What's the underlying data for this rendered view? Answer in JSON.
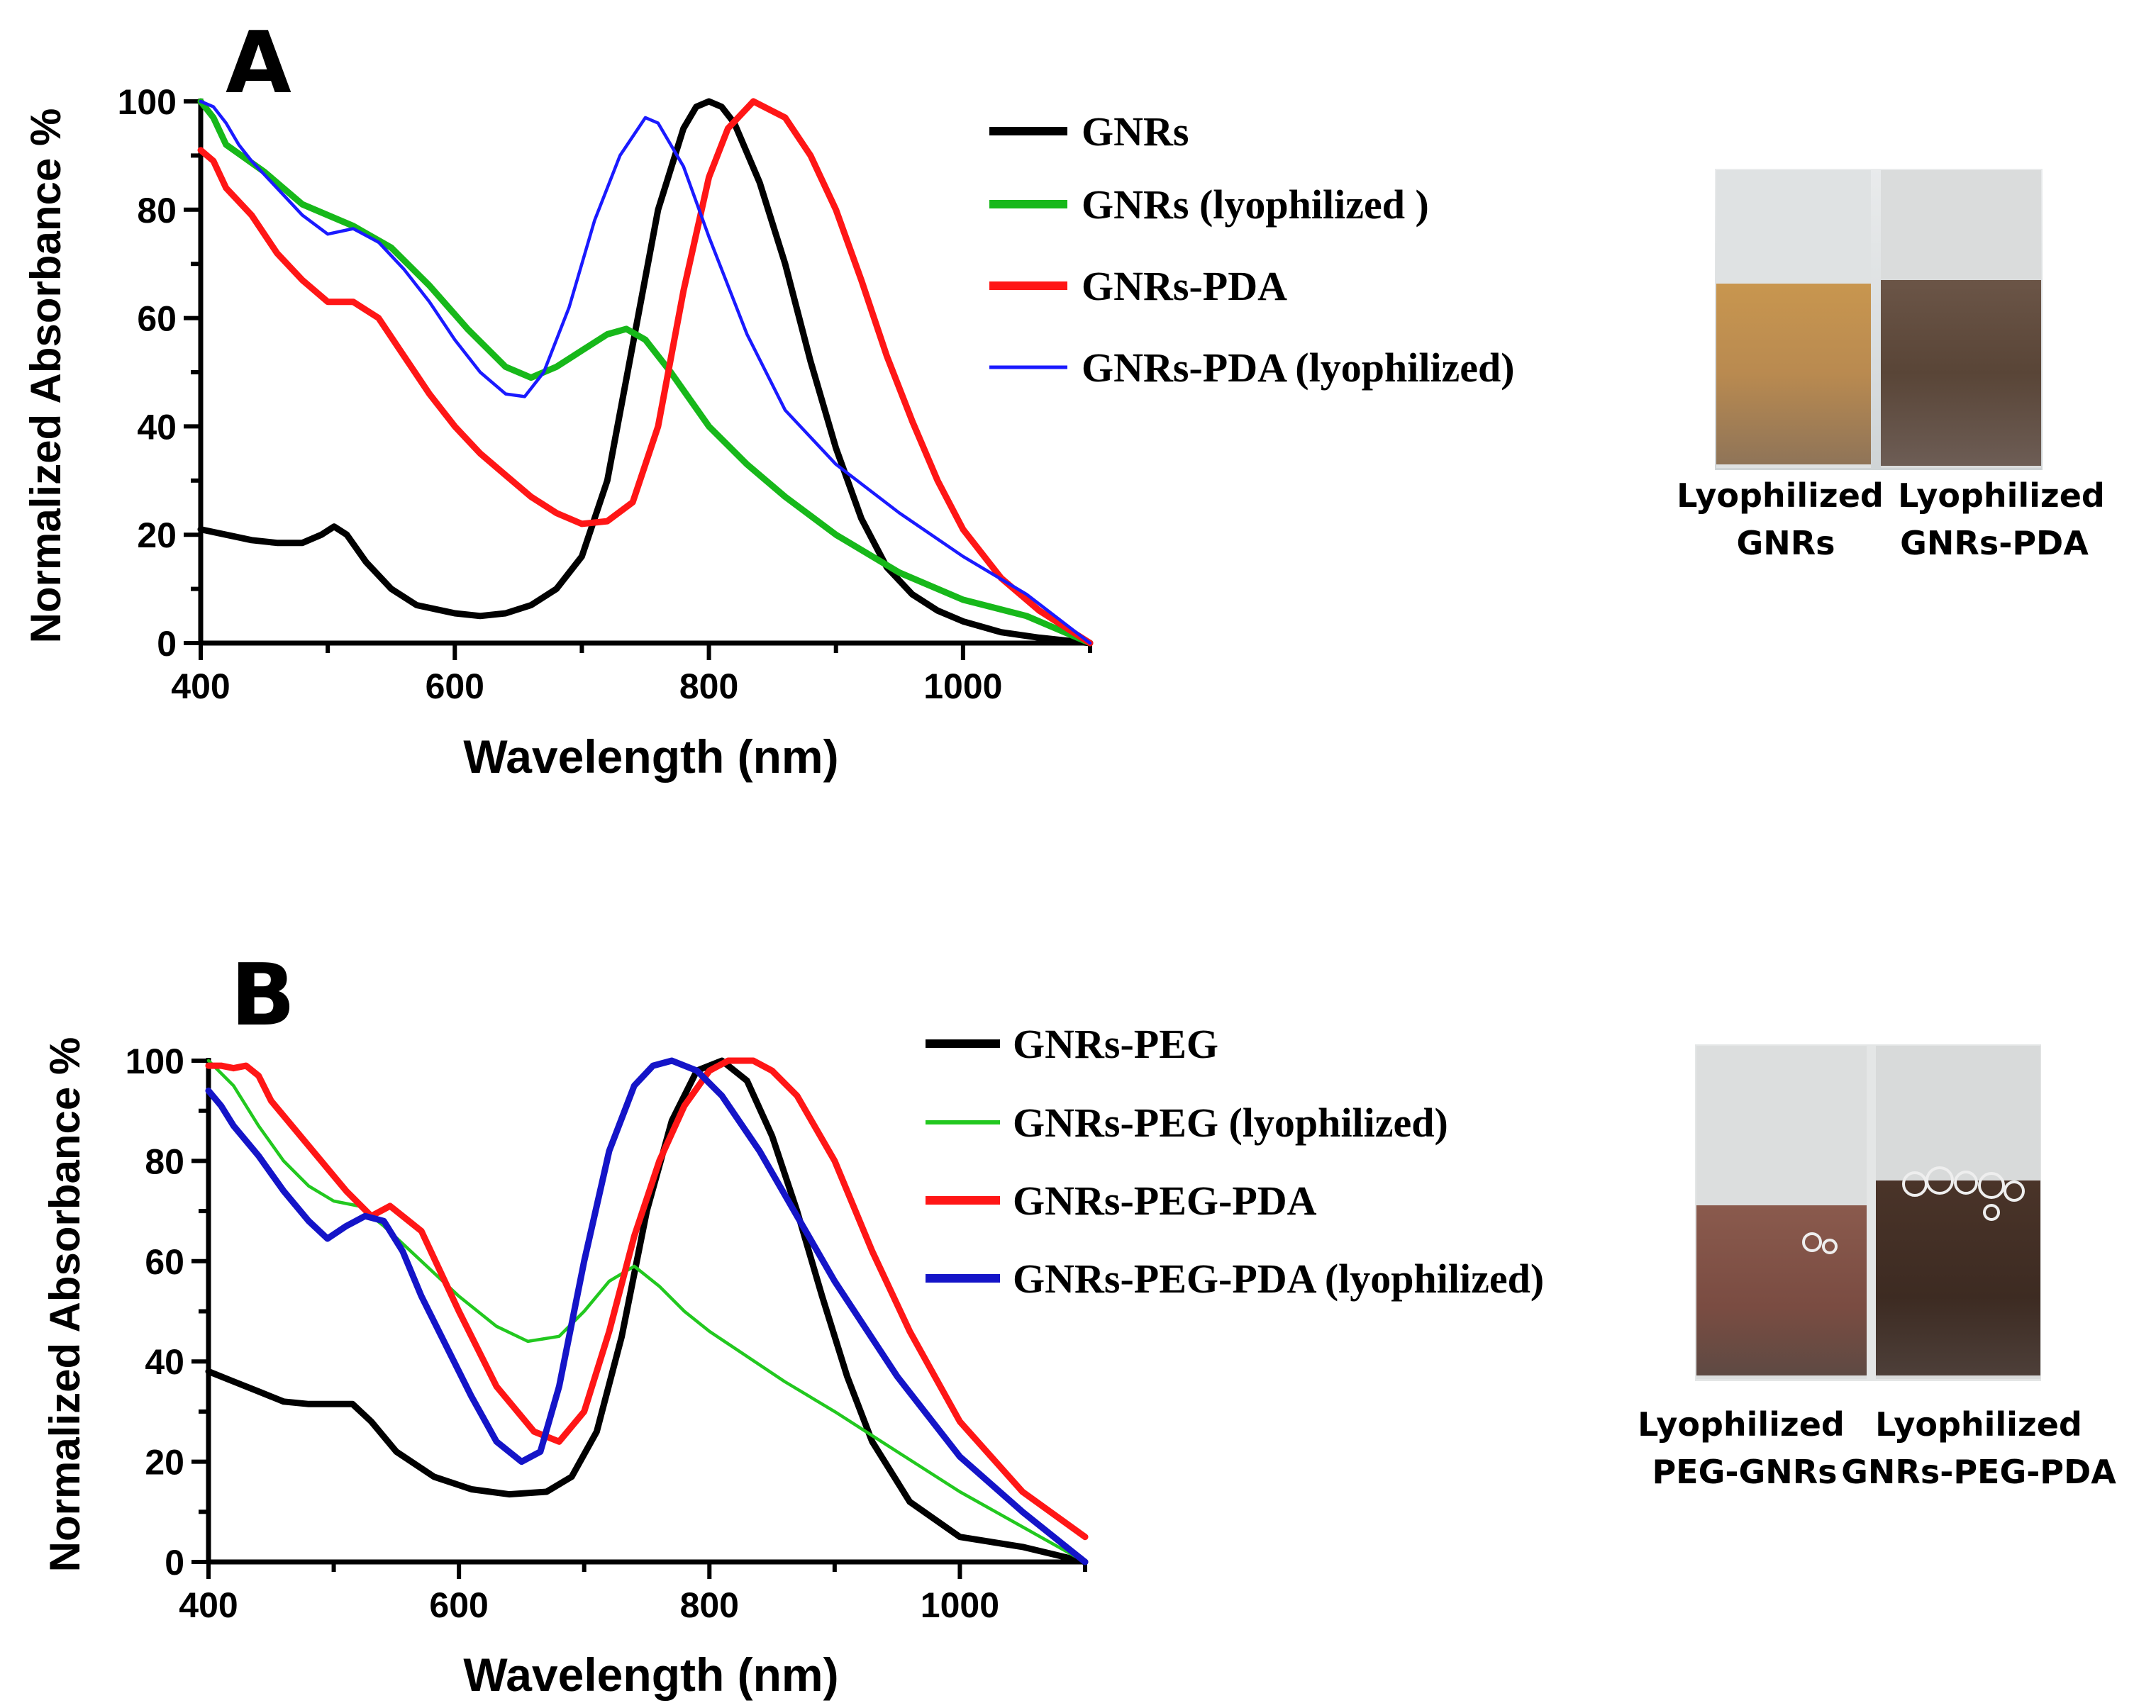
{
  "colors": {
    "black": "#000000",
    "green": "#17b81a",
    "red": "#ff1616",
    "blue_a": "#1a1aff",
    "blue_b": "#1414c8",
    "light_green": "#22c81f"
  },
  "chart_data": [
    {
      "type": "line",
      "panel_label": "A",
      "title": "",
      "xlabel": "Wavelength (nm)",
      "ylabel": "Normalized Absorbance %",
      "xlim": [
        400,
        1100
      ],
      "ylim": [
        0,
        100
      ],
      "x_ticks": [
        "400",
        "600",
        "800",
        "1000"
      ],
      "y_ticks": [
        "0",
        "20",
        "40",
        "60",
        "80",
        "100"
      ],
      "legend_position": "top-right",
      "grid": false,
      "series": [
        {
          "name": "GNRs",
          "color": "#000000",
          "width": "thick",
          "x": [
            400,
            420,
            440,
            460,
            480,
            495,
            505,
            515,
            530,
            550,
            570,
            600,
            620,
            640,
            660,
            680,
            700,
            720,
            740,
            760,
            780,
            790,
            800,
            810,
            820,
            840,
            860,
            880,
            900,
            920,
            940,
            960,
            980,
            1000,
            1030,
            1060,
            1100
          ],
          "values": [
            21,
            20,
            19,
            18.5,
            18.5,
            20,
            21.5,
            20,
            15,
            10,
            7,
            5.5,
            5,
            5.5,
            7,
            10,
            16,
            30,
            55,
            80,
            95,
            99,
            100,
            99,
            96,
            85,
            70,
            52,
            36,
            23,
            14,
            9,
            6,
            4,
            2,
            1,
            0
          ]
        },
        {
          "name": "GNRs (lyophilized )",
          "color": "#17b81a",
          "width": "thick",
          "x": [
            400,
            410,
            420,
            450,
            480,
            520,
            550,
            580,
            610,
            640,
            660,
            680,
            700,
            720,
            735,
            750,
            770,
            800,
            830,
            860,
            900,
            950,
            1000,
            1050,
            1100
          ],
          "values": [
            100,
            97,
            92,
            87,
            81,
            77,
            73,
            66,
            58,
            51,
            49,
            51,
            54,
            57,
            58,
            56,
            50,
            40,
            33,
            27,
            20,
            13,
            8,
            5,
            0
          ]
        },
        {
          "name": "GNRs-PDA",
          "color": "#ff1616",
          "width": "thick",
          "x": [
            400,
            410,
            420,
            440,
            460,
            480,
            500,
            520,
            540,
            560,
            580,
            600,
            620,
            640,
            660,
            680,
            700,
            720,
            740,
            760,
            780,
            800,
            815,
            835,
            860,
            880,
            900,
            920,
            940,
            960,
            980,
            1000,
            1030,
            1060,
            1100
          ],
          "values": [
            91,
            89,
            84,
            79,
            72,
            67,
            63,
            63,
            60,
            53,
            46,
            40,
            35,
            31,
            27,
            24,
            22,
            22.5,
            26,
            40,
            65,
            86,
            95,
            100,
            97,
            90,
            80,
            67,
            53,
            41,
            30,
            21,
            12,
            6,
            0
          ]
        },
        {
          "name": "GNRs-PDA (lyophilized)",
          "color": "#1a1aff",
          "width": "thin",
          "x": [
            400,
            410,
            420,
            430,
            440,
            460,
            480,
            500,
            520,
            540,
            560,
            580,
            600,
            620,
            640,
            655,
            670,
            690,
            710,
            730,
            750,
            760,
            780,
            800,
            830,
            860,
            900,
            950,
            1000,
            1050,
            1100
          ],
          "values": [
            100,
            99,
            96,
            92,
            89,
            84,
            79,
            75.5,
            76.5,
            74,
            69,
            63,
            56,
            50,
            46,
            45.5,
            50,
            62,
            78,
            90,
            97,
            96,
            88,
            75,
            57,
            43,
            33,
            24,
            16,
            9,
            0
          ]
        }
      ]
    },
    {
      "type": "line",
      "panel_label": "B",
      "title": "",
      "xlabel": "Wavelength (nm)",
      "ylabel": "Normalized Absorbance %",
      "xlim": [
        400,
        1100
      ],
      "ylim": [
        0,
        100
      ],
      "x_ticks": [
        "400",
        "600",
        "800",
        "1000"
      ],
      "y_ticks": [
        "0",
        "20",
        "40",
        "60",
        "80",
        "100"
      ],
      "legend_position": "top-right",
      "grid": false,
      "series": [
        {
          "name": "GNRs-PEG",
          "color": "#000000",
          "width": "thick",
          "x": [
            400,
            420,
            440,
            460,
            480,
            500,
            515,
            530,
            550,
            580,
            610,
            640,
            670,
            690,
            710,
            730,
            750,
            770,
            790,
            810,
            830,
            850,
            870,
            890,
            910,
            930,
            960,
            1000,
            1050,
            1100
          ],
          "values": [
            38,
            36,
            34,
            32,
            31.5,
            31.5,
            31.5,
            28,
            22,
            17,
            14.5,
            13.5,
            14,
            17,
            26,
            45,
            70,
            88,
            98,
            100,
            96,
            85,
            70,
            53,
            37,
            24,
            12,
            5,
            3,
            0
          ]
        },
        {
          "name": "GNRs-PEG  (lyophilized)",
          "color": "#22c81f",
          "width": "thin",
          "x": [
            400,
            420,
            440,
            460,
            480,
            500,
            520,
            540,
            570,
            600,
            630,
            655,
            680,
            700,
            720,
            740,
            760,
            780,
            800,
            830,
            860,
            900,
            950,
            1000,
            1050,
            1100
          ],
          "values": [
            100,
            95,
            87,
            80,
            75,
            72,
            71,
            67,
            60,
            53,
            47,
            44,
            45,
            50,
            56,
            59,
            55,
            50,
            46,
            41,
            36,
            30,
            22,
            14,
            7,
            0
          ]
        },
        {
          "name": "GNRs-PEG-PDA",
          "color": "#ff1616",
          "width": "thick",
          "x": [
            400,
            410,
            420,
            430,
            440,
            450,
            470,
            490,
            510,
            530,
            545,
            560,
            570,
            600,
            630,
            660,
            680,
            700,
            720,
            740,
            760,
            780,
            800,
            815,
            835,
            850,
            870,
            900,
            930,
            960,
            1000,
            1050,
            1100
          ],
          "values": [
            99,
            99,
            98.5,
            99,
            97,
            92,
            86,
            80,
            74,
            69,
            71,
            68,
            66,
            50,
            35,
            26,
            24,
            30,
            46,
            65,
            80,
            91,
            98,
            100,
            100,
            98,
            93,
            80,
            62,
            46,
            28,
            14,
            5
          ]
        },
        {
          "name": "GNRs-PEG-PDA (lyophilized)",
          "color": "#1414c8",
          "width": "thick",
          "x": [
            400,
            410,
            420,
            440,
            460,
            480,
            495,
            510,
            525,
            540,
            555,
            570,
            590,
            610,
            630,
            650,
            665,
            680,
            700,
            720,
            740,
            755,
            770,
            790,
            810,
            840,
            870,
            900,
            950,
            1000,
            1050,
            1100
          ],
          "values": [
            94,
            91,
            87,
            81,
            74,
            68,
            64.5,
            67,
            69,
            68,
            62,
            53,
            43,
            33,
            24,
            20,
            22,
            35,
            60,
            82,
            95,
            99,
            100,
            98,
            93,
            82,
            69,
            56,
            37,
            21,
            10,
            0
          ]
        }
      ]
    }
  ],
  "photos": [
    {
      "labels": [
        [
          "Lyophilized",
          "GNRs"
        ],
        [
          "Lyophilized",
          "GNRs-PDA"
        ]
      ]
    },
    {
      "labels": [
        [
          "Lyophilized",
          "PEG-GNRs"
        ],
        [
          "Lyophilized",
          "GNRs-PEG-PDA"
        ]
      ]
    }
  ]
}
